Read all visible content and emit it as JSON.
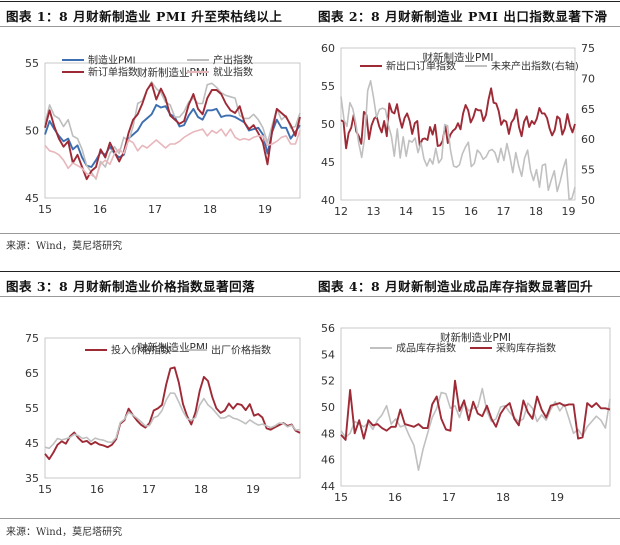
{
  "headers": {
    "fig1": "图表 1：8 月财新制造业 PMI 升至荣枯线以上",
    "fig2": "图表 2：8 月财新制造业 PMI 出口指数显著下滑",
    "fig3": "图表 3：8 月财新制造业价格指数显著回落",
    "fig4": "图表 4：8 月财新制造业成品库存指数显著回升"
  },
  "sources": {
    "top": "来源：Wind，莫尼塔研究",
    "bottom": "来源：Wind，莫尼塔研究"
  },
  "chart_data": [
    {
      "type": "line",
      "title": "财新制造业PMI",
      "x_ticks": [
        "15",
        "16",
        "17",
        "18",
        "19"
      ],
      "ylim": [
        45,
        55
      ],
      "y_ticks": [
        45,
        50,
        55
      ],
      "legend_placement": "top",
      "series": [
        {
          "name": "制造业PMI",
          "color": "#3d6fb0",
          "values": [
            49.7,
            50.7,
            50.1,
            49.6,
            49.2,
            49.4,
            48.6,
            48.9,
            48.0,
            47.4,
            47.3,
            47.8,
            48.4,
            48.2,
            48.8,
            48.3,
            48.0,
            48.2,
            49.4,
            49.7,
            50.0,
            50.6,
            50.9,
            51.2,
            51.9,
            51.7,
            51.8,
            51.2,
            51.0,
            50.3,
            50.4,
            51.1,
            51.6,
            51.0,
            50.8,
            51.5,
            51.5,
            51.6,
            51.0,
            51.1,
            51.1,
            51.0,
            50.8,
            50.6,
            50.0,
            50.1,
            50.2,
            49.7,
            48.3,
            49.9,
            50.8,
            50.2,
            50.2,
            49.4,
            49.9,
            50.4
          ]
        },
        {
          "name": "产出指数",
          "color": "#bdbdbd",
          "values": [
            50.5,
            51.9,
            51.1,
            50.9,
            50.3,
            50.8,
            49.6,
            49.4,
            48.6,
            47.4,
            46.9,
            46.4,
            47.7,
            47.3,
            48.3,
            48.8,
            48.3,
            49.5,
            49.2,
            50.3,
            52.0,
            52.2,
            53.0,
            53.6,
            53.1,
            52.8,
            52.1,
            51.9,
            51.0,
            51.0,
            51.4,
            52.1,
            52.4,
            52.0,
            52.0,
            53.4,
            53.5,
            53.2,
            52.8,
            52.6,
            52.5,
            52.4,
            51.1,
            50.9,
            50.9,
            51.2,
            50.8,
            50.2,
            49.1,
            50.4,
            51.6,
            50.8,
            51.1,
            50.2,
            50.3,
            51.3
          ]
        },
        {
          "name": "新订单指数",
          "color": "#9e2a36",
          "values": [
            50.2,
            51.5,
            50.3,
            49.4,
            48.8,
            49.2,
            47.6,
            48.2,
            47.3,
            46.4,
            47.0,
            47.3,
            48.6,
            48.0,
            49.1,
            48.4,
            47.7,
            48.4,
            49.8,
            50.8,
            51.2,
            52.0,
            53.0,
            53.5,
            52.3,
            53.1,
            52.4,
            51.1,
            50.8,
            50.5,
            50.7,
            51.9,
            52.7,
            51.6,
            51.2,
            52.4,
            53.0,
            53.0,
            52.7,
            52.0,
            51.5,
            51.3,
            51.8,
            50.6,
            50.1,
            50.4,
            49.8,
            49.1,
            47.5,
            50.0,
            51.6,
            51.3,
            51.0,
            50.4,
            49.6,
            51.0
          ]
        },
        {
          "name": "就业指数",
          "color": "#e8b7bc",
          "values": [
            48.9,
            48.5,
            48.4,
            48.2,
            47.8,
            47.2,
            47.6,
            47.4,
            47.2,
            46.8,
            46.7,
            46.5,
            47.5,
            47.8,
            47.5,
            48.3,
            48.6,
            48.3,
            49.3,
            49.1,
            48.5,
            48.9,
            48.7,
            49.0,
            49.3,
            49.0,
            48.7,
            49.0,
            49.0,
            49.2,
            49.5,
            49.7,
            49.9,
            50.0,
            50.1,
            49.6,
            50.0,
            49.8,
            50.1,
            49.6,
            50.1,
            49.5,
            49.3,
            49.4,
            49.3,
            49.5,
            49.6,
            49.6,
            48.9,
            49.0,
            49.2,
            49.5,
            49.6,
            49.0,
            49.0,
            50.0
          ]
        }
      ]
    },
    {
      "type": "line",
      "title": "财新制造业PMI",
      "x_ticks": [
        "12",
        "13",
        "14",
        "15",
        "16",
        "17",
        "18",
        "19"
      ],
      "ylim": [
        40,
        60
      ],
      "y_ticks": [
        40,
        45,
        50,
        55,
        60
      ],
      "y2lim": [
        50,
        75
      ],
      "y2_ticks": [
        50,
        55,
        60,
        65,
        70,
        75
      ],
      "legend_placement": "top",
      "series": [
        {
          "name": "新出口订单指数",
          "color": "#9e2a36",
          "axis": "left",
          "values": [
            50.5,
            50.3,
            46.8,
            48.8,
            49.5,
            51.2,
            49.0,
            48.4,
            47.4,
            51.6,
            51.2,
            48.0,
            49.8,
            50.7,
            51.0,
            49.7,
            48.9,
            50.4,
            48.4,
            52.7,
            51.6,
            51.4,
            52.6,
            50.8,
            49.5,
            50.8,
            51.4,
            50.4,
            48.7,
            50.1,
            50.4,
            47.1,
            48.0,
            48.1,
            47.9,
            49.6,
            48.6,
            49.9,
            47.1,
            47.2,
            47.8,
            49.8,
            47.5,
            48.6,
            49.1,
            49.4,
            50.1,
            49.3,
            51.4,
            52.5,
            51.8,
            50.2,
            50.9,
            52.0,
            51.8,
            51.8,
            50.4,
            51.2,
            53.2,
            54.7,
            52.8,
            52.7,
            51.7,
            49.9,
            50.5,
            50.3,
            48.7,
            50.2,
            50.7,
            51.9,
            49.6,
            48.4,
            50.3,
            51.0,
            49.6,
            50.4,
            50.0,
            50.7,
            52.1,
            51.4,
            51.4,
            50.8,
            49.4,
            48.5,
            49.2,
            51.0,
            50.7,
            48.6,
            49.4,
            51.3,
            49.8,
            48.9,
            50.0
          ]
        },
        {
          "name": "未来产出指数(右轴)",
          "color": "#c0c0c0",
          "axis": "right",
          "values": [
            67.0,
            63.2,
            62.1,
            66.0,
            65.0,
            62.6,
            59.3,
            57.0,
            60.3,
            68.0,
            69.6,
            66.8,
            63.6,
            64.9,
            65.1,
            64.9,
            62.3,
            60.5,
            57.2,
            61.7,
            56.9,
            60.4,
            57.2,
            59.8,
            59.5,
            60.2,
            57.8,
            59.4,
            56.8,
            55.6,
            56.8,
            55.9,
            58.5,
            56.1,
            56.8,
            62.4,
            62.2,
            58.1,
            55.6,
            55.4,
            55.8,
            57.6,
            58.7,
            59.5,
            55.5,
            56.0,
            58.2,
            57.7,
            56.7,
            57.1,
            58.1,
            58.3,
            57.8,
            56.2,
            58.5,
            56.5,
            59.3,
            57.2,
            54.5,
            57.8,
            55.6,
            53.9,
            56.9,
            58.2,
            54.8,
            53.2,
            55.0,
            52.1,
            55.7,
            55.9,
            51.6,
            53.3,
            54.8,
            51.4,
            53.1,
            55.2,
            56.7,
            50.1,
            50.3,
            52.1
          ]
        }
      ]
    },
    {
      "type": "line",
      "title": "财新制造业PMI",
      "x_ticks": [
        "15",
        "16",
        "17",
        "18",
        "19"
      ],
      "ylim": [
        35,
        75
      ],
      "y_ticks": [
        35,
        45,
        55,
        65,
        75
      ],
      "legend_placement": "top",
      "series": [
        {
          "name": "投入价格指数",
          "color": "#9e2a36",
          "values": [
            41.9,
            40.4,
            42.3,
            44.5,
            45.5,
            44.8,
            46.9,
            48.0,
            46.4,
            45.3,
            45.6,
            44.6,
            45.3,
            44.6,
            44.3,
            43.8,
            44.5,
            46.1,
            50.5,
            51.5,
            54.8,
            53.0,
            51.4,
            50.2,
            49.4,
            50.7,
            54.3,
            54.9,
            55.9,
            61.7,
            66.3,
            66.6,
            62.3,
            56.1,
            52.7,
            50.3,
            53.8,
            59.9,
            63.9,
            62.7,
            58.2,
            54.9,
            53.6,
            54.3,
            56.3,
            54.8,
            56.2,
            55.9,
            54.4,
            56.1,
            52.8,
            53.3,
            52.3,
            49.2,
            48.8,
            49.5,
            50.1,
            50.7,
            49.9,
            50.3,
            48.5,
            47.9
          ]
        },
        {
          "name": "出厂价格指数",
          "color": "#c0c0c0",
          "values": [
            43.8,
            43.5,
            44.7,
            46.3,
            45.9,
            46.2,
            46.6,
            47.5,
            47.1,
            46.3,
            46.6,
            45.5,
            46.4,
            46.0,
            45.8,
            45.3,
            45.2,
            46.5,
            50.8,
            51.8,
            53.8,
            53.0,
            52.1,
            51.1,
            49.9,
            50.0,
            52.2,
            52.7,
            54.3,
            57.3,
            59.3,
            59.2,
            56.7,
            54.0,
            52.0,
            51.5,
            52.3,
            55.9,
            57.7,
            55.9,
            54.9,
            53.5,
            52.1,
            52.2,
            52.9,
            52.1,
            51.8,
            51.2,
            50.5,
            51.6,
            50.8,
            50.1,
            50.4,
            49.9,
            49.4,
            49.9,
            50.7,
            50.6,
            49.6,
            50.1,
            48.7,
            48.8
          ]
        }
      ]
    },
    {
      "type": "line",
      "title": "财新制造业PMI",
      "x_ticks": [
        "15",
        "16",
        "17",
        "18",
        "19"
      ],
      "ylim": [
        44,
        56
      ],
      "y_ticks": [
        44,
        46,
        48,
        50,
        52,
        54,
        56
      ],
      "legend_placement": "top",
      "series": [
        {
          "name": "成品库存指数",
          "color": "#c0c0c0",
          "values": [
            48.2,
            47.7,
            48.0,
            48.9,
            48.7,
            48.5,
            48.8,
            48.3,
            49.0,
            49.4,
            50.1,
            48.7,
            49.1,
            48.5,
            48.6,
            47.8,
            47.1,
            45.2,
            46.8,
            48.0,
            49.2,
            49.9,
            51.1,
            51.0,
            49.9,
            50.1,
            49.2,
            50.3,
            49.7,
            49.9,
            50.0,
            51.4,
            49.7,
            48.9,
            49.1,
            50.0,
            50.1,
            49.6,
            49.2,
            48.9,
            49.1,
            50.3,
            49.9,
            48.9,
            49.4,
            49.0,
            49.8,
            50.4,
            49.7,
            50.2,
            49.1,
            48.0,
            48.3,
            47.8,
            48.5,
            48.9,
            49.3,
            49.0,
            48.4,
            50.6
          ]
        },
        {
          "name": "采购库存指数",
          "color": "#9e2a36",
          "values": [
            47.9,
            47.5,
            51.3,
            48.0,
            49.0,
            47.6,
            49.0,
            48.6,
            48.7,
            48.4,
            48.2,
            48.5,
            48.5,
            49.8,
            48.7,
            48.6,
            48.5,
            48.7,
            48.4,
            48.4,
            50.2,
            50.8,
            49.1,
            48.3,
            48.2,
            52.0,
            49.7,
            50.5,
            49.0,
            50.4,
            49.5,
            49.3,
            50.1,
            49.1,
            48.5,
            49.5,
            50.0,
            50.3,
            49.1,
            48.6,
            50.5,
            49.6,
            49.1,
            50.8,
            49.8,
            49.2,
            50.1,
            50.2,
            50.3,
            50.1,
            50.2,
            50.2,
            47.6,
            47.7,
            50.3,
            50.0,
            50.3,
            49.9,
            49.9,
            49.8
          ]
        }
      ]
    }
  ]
}
